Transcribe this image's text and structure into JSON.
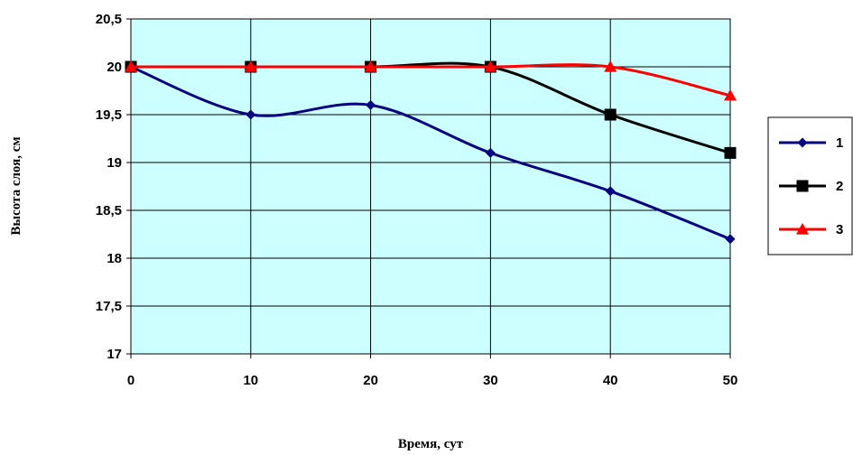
{
  "chart_data": {
    "type": "line",
    "title": "",
    "xlabel": "Время, сут",
    "ylabel": "Высота слоя, см",
    "x": [
      0,
      10,
      20,
      30,
      40,
      50
    ],
    "x_tick_labels": [
      "0",
      "10",
      "20",
      "30",
      "40",
      "50"
    ],
    "y_tick_labels": [
      "17",
      "17,5",
      "18",
      "18,5",
      "19",
      "19,5",
      "20",
      "20,5"
    ],
    "y_ticks": [
      17,
      17.5,
      18,
      18.5,
      19,
      19.5,
      20,
      20.5
    ],
    "xlim": [
      0,
      50
    ],
    "ylim": [
      17,
      20.5
    ],
    "grid": true,
    "plot_background": "#ccffff",
    "legend_position": "right",
    "series": [
      {
        "name": "1",
        "values": [
          20.0,
          19.5,
          19.6,
          19.1,
          18.7,
          18.2
        ],
        "color": "#000080",
        "marker": "diamond"
      },
      {
        "name": "2",
        "values": [
          20.0,
          20.0,
          20.0,
          20.0,
          19.5,
          19.1
        ],
        "color": "#000000",
        "marker": "square"
      },
      {
        "name": "3",
        "values": [
          20.0,
          20.0,
          20.0,
          20.0,
          20.0,
          19.7
        ],
        "color": "#ff0000",
        "marker": "triangle"
      }
    ]
  }
}
